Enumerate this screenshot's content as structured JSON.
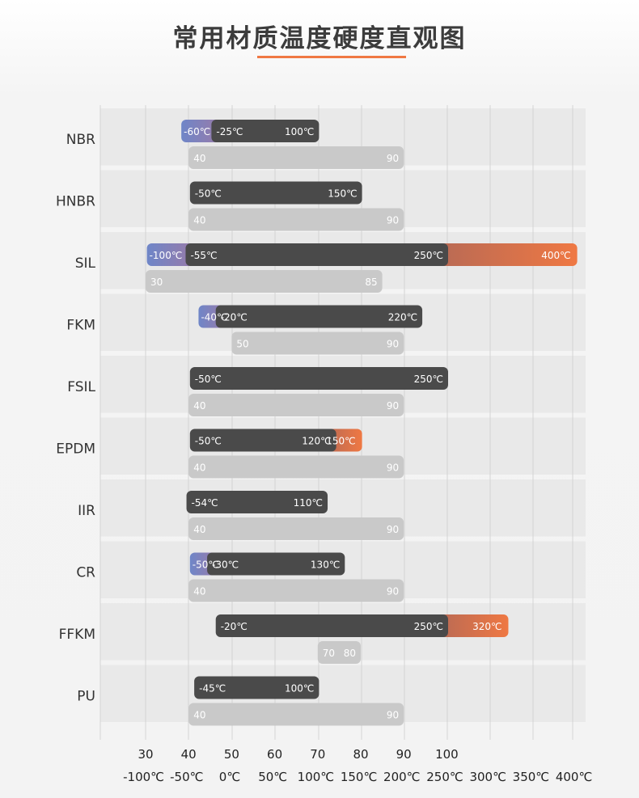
{
  "page": {
    "title": "常用材质温度硬度直观图"
  },
  "colors": {
    "dark": "#4a4a4a",
    "gray": "#c9c9c9",
    "gray_text": "#f2f2f2",
    "blue": "#6f86c8",
    "orange": "#ef7843",
    "purple": "#9a7aa8",
    "grid": "#d4d4d4",
    "band": "#e9e9e9"
  },
  "chart_data": {
    "type": "bar",
    "title": "常用材质温度硬度直观图",
    "categories": [
      "NBR",
      "HNBR",
      "SIL",
      "FKM",
      "FSIL",
      "EPDM",
      "IIR",
      "CR",
      "FFKM",
      "PU"
    ],
    "hardness_axis": {
      "ticks": [
        30,
        40,
        50,
        60,
        70,
        80,
        90,
        100
      ]
    },
    "temperature_axis": {
      "ticks": [
        -100,
        -50,
        0,
        50,
        100,
        150,
        200,
        250,
        300,
        350,
        400
      ],
      "tick_labels": [
        "-100℃",
        "-50℃",
        "0℃",
        "50℃",
        "100℃",
        "150℃",
        "200℃",
        "250℃",
        "300℃",
        "350℃",
        "400℃"
      ]
    },
    "series": [
      {
        "name": "",
        "type": "temperature_range",
        "values": [
          {
            "material": "NBR",
            "min": -25,
            "max": 100,
            "low_ext": -60,
            "high_ext": null,
            "labels": {
              "low_ext": "-60℃",
              "min": "-25℃",
              "max": "100℃"
            }
          },
          {
            "material": "HNBR",
            "min": -50,
            "max": 150,
            "low_ext": null,
            "high_ext": null,
            "labels": {
              "min": "-50℃",
              "max": "150℃"
            }
          },
          {
            "material": "SIL",
            "min": -55,
            "max": 250,
            "low_ext": -100,
            "high_ext": 400,
            "labels": {
              "low_ext": "-100℃",
              "min": "-55℃",
              "max": "250℃",
              "high_ext": "400℃"
            }
          },
          {
            "material": "FKM",
            "min": -20,
            "max": 220,
            "low_ext": -40,
            "high_ext": null,
            "labels": {
              "low_ext": "-40℃",
              "min": "-20℃",
              "max": "220℃"
            }
          },
          {
            "material": "FSIL",
            "min": -50,
            "max": 250,
            "low_ext": null,
            "high_ext": null,
            "labels": {
              "min": "-50℃",
              "max": "250℃"
            }
          },
          {
            "material": "EPDM",
            "min": -50,
            "max": 120,
            "low_ext": null,
            "high_ext": 150,
            "labels": {
              "min": "-50℃",
              "max": "120℃",
              "high_ext": "150℃"
            }
          },
          {
            "material": "IIR",
            "min": -54,
            "max": 110,
            "low_ext": null,
            "high_ext": null,
            "labels": {
              "min": "-54℃",
              "max": "110℃"
            }
          },
          {
            "material": "CR",
            "min": -30,
            "max": 130,
            "low_ext": -50,
            "high_ext": null,
            "labels": {
              "low_ext": "-50℃",
              "min": "-30℃",
              "max": "130℃"
            }
          },
          {
            "material": "FFKM",
            "min": -20,
            "max": 250,
            "low_ext": null,
            "high_ext": 320,
            "labels": {
              "min": "-20℃",
              "max": "250℃",
              "high_ext": "320℃"
            }
          },
          {
            "material": "PU",
            "min": -45,
            "max": 100,
            "low_ext": null,
            "high_ext": null,
            "labels": {
              "min": "-45℃",
              "max": "100℃"
            }
          }
        ]
      },
      {
        "name": "",
        "type": "hardness_range",
        "values": [
          {
            "material": "NBR",
            "min": 40,
            "max": 90
          },
          {
            "material": "HNBR",
            "min": 40,
            "max": 90
          },
          {
            "material": "SIL",
            "min": 30,
            "max": 85
          },
          {
            "material": "FKM",
            "min": 50,
            "max": 90
          },
          {
            "material": "FSIL",
            "min": 40,
            "max": 90
          },
          {
            "material": "EPDM",
            "min": 40,
            "max": 90
          },
          {
            "material": "IIR",
            "min": 40,
            "max": 90
          },
          {
            "material": "CR",
            "min": 40,
            "max": 90
          },
          {
            "material": "FFKM",
            "min": 70,
            "max": 80
          },
          {
            "material": "PU",
            "min": 40,
            "max": 90
          }
        ]
      }
    ],
    "grid": true,
    "legend": "none"
  }
}
